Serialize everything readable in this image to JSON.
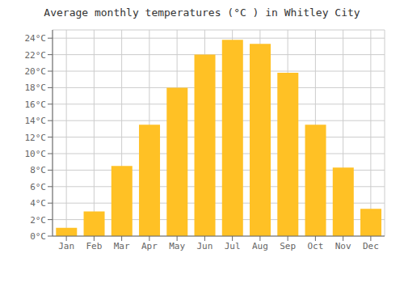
{
  "chart_data": {
    "type": "bar",
    "title": "Average monthly temperatures (°C ) in Whitley City",
    "categories": [
      "Jan",
      "Feb",
      "Mar",
      "Apr",
      "May",
      "Jun",
      "Jul",
      "Aug",
      "Sep",
      "Oct",
      "Nov",
      "Dec"
    ],
    "values": [
      1.0,
      3.0,
      8.5,
      13.5,
      18.0,
      22.0,
      23.8,
      23.3,
      19.8,
      13.5,
      8.3,
      3.3
    ],
    "color": "#FFC125",
    "ylim": [
      0,
      25
    ],
    "yticks": [
      {
        "value": 0,
        "label": "0°C"
      },
      {
        "value": 2,
        "label": "2°C"
      },
      {
        "value": 4,
        "label": "4°C"
      },
      {
        "value": 6,
        "label": "6°C"
      },
      {
        "value": 8,
        "label": "8°C"
      },
      {
        "value": 10,
        "label": "10°C"
      },
      {
        "value": 12,
        "label": "12°C"
      },
      {
        "value": 14,
        "label": "14°C"
      },
      {
        "value": 16,
        "label": "16°C"
      },
      {
        "value": 18,
        "label": "18°C"
      },
      {
        "value": 20,
        "label": "20°C"
      },
      {
        "value": 22,
        "label": "22°C"
      },
      {
        "value": 24,
        "label": "24°C"
      }
    ],
    "grid": true
  }
}
